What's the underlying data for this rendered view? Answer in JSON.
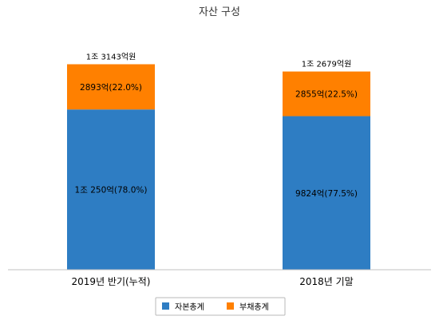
{
  "chart_data": {
    "type": "bar",
    "stacked": true,
    "title": "자산 구성",
    "categories": [
      "2019년 반기(누적)",
      "2018년 기말"
    ],
    "totals": [
      13143,
      12679
    ],
    "total_labels": [
      "1조 3143억원",
      "1조 2679억원"
    ],
    "series": [
      {
        "name": "자본총계",
        "color": "#2e7dc3",
        "values": [
          10250,
          9824
        ],
        "labels": [
          "1조 250억(78.0%)",
          "9824억(77.5%)"
        ]
      },
      {
        "name": "부채총계",
        "color": "#ff8000",
        "values": [
          2893,
          2855
        ],
        "labels": [
          "2893억(22.0%)",
          "2855억(22.5%)"
        ]
      }
    ],
    "ylim": [
      0,
      14700
    ],
    "grid": false,
    "legend": "bottom"
  }
}
